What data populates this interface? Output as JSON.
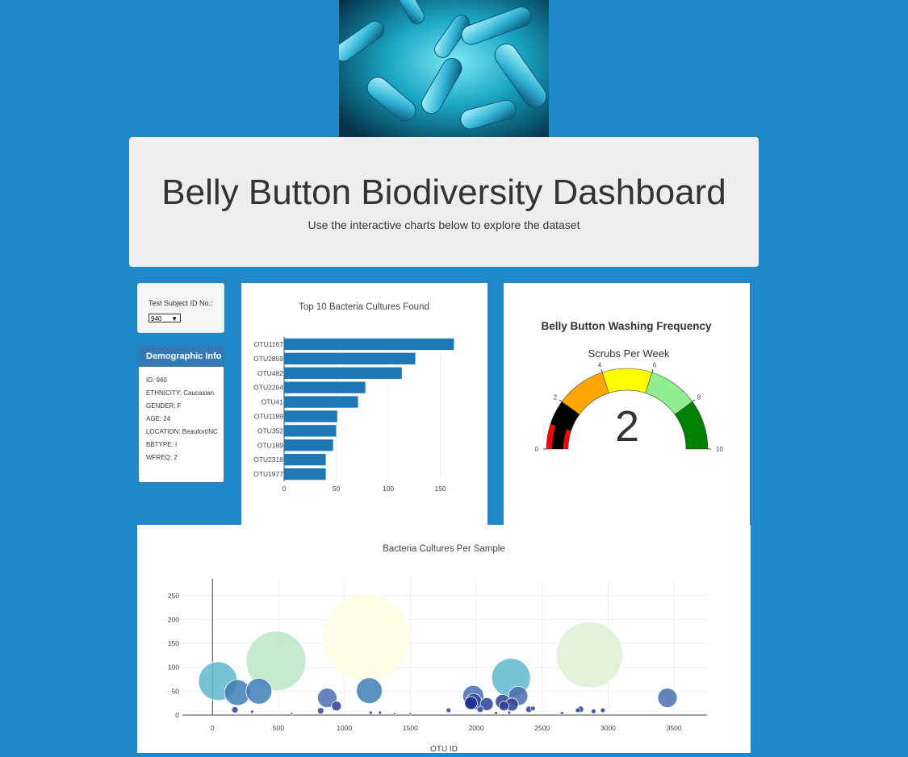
{
  "header": {
    "title": "Belly Button Biodiversity Dashboard",
    "subtitle": "Use the interactive charts below to explore the dataset"
  },
  "selector": {
    "label": "Test Subject ID No.:",
    "selected": "940"
  },
  "demographics": {
    "heading": "Demographic Info",
    "lines": [
      "ID: 940",
      "ETHNICITY: Caucasian",
      "GENDER: F",
      "AGE: 24",
      "LOCATION: Beaufort/NC",
      "BBTYPE: I",
      "WFREQ: 2"
    ]
  },
  "colors": {
    "page_bg": "#1e88c9",
    "bar_color": "#1f77b4",
    "panel_header": "#337ab7"
  },
  "chart_data": [
    {
      "type": "bar",
      "orientation": "horizontal",
      "title": "Top 10 Bacteria Cultures Found",
      "categories": [
        "OTU1167",
        "OTU2859",
        "OTU482",
        "OTU2264",
        "OTU41",
        "OTU1189",
        "OTU352",
        "OTU189",
        "OTU2318",
        "OTU1977"
      ],
      "values": [
        163,
        126,
        113,
        78,
        71,
        51,
        50,
        47,
        40,
        40
      ],
      "xticks": [
        0,
        50,
        100,
        150
      ],
      "xlim": [
        0,
        172
      ],
      "grid": true
    },
    {
      "type": "gauge",
      "title": "Belly Button Washing Frequency",
      "subtitle": "Scrubs Per Week",
      "value": 2,
      "value_label": "2",
      "range": [
        0,
        10
      ],
      "ticks": [
        0,
        2,
        4,
        6,
        8,
        10
      ],
      "steps": [
        {
          "range": [
            0,
            1
          ],
          "color": "#ff0000"
        },
        {
          "range": [
            1,
            2
          ],
          "color": "#000000"
        },
        {
          "range": [
            2,
            4
          ],
          "color": "#ffa500"
        },
        {
          "range": [
            4,
            6
          ],
          "color": "#ffff00"
        },
        {
          "range": [
            6,
            8
          ],
          "color": "#90ee90"
        },
        {
          "range": [
            8,
            10
          ],
          "color": "#008000"
        }
      ]
    },
    {
      "type": "scatter",
      "bubble": true,
      "title": "Bacteria Cultures Per Sample",
      "xlabel": "OTU ID",
      "ylabel": "",
      "xlim": [
        -375,
        3750
      ],
      "ylim": [
        0,
        285
      ],
      "xticks": [
        0,
        500,
        1000,
        1500,
        2000,
        2500,
        3000,
        3500
      ],
      "yticks": [
        0,
        50,
        100,
        150,
        200,
        250
      ],
      "grid": true,
      "points": [
        {
          "x": 41,
          "y": 71,
          "r": 24,
          "color": "#5eb9ce"
        },
        {
          "x": 189,
          "y": 47,
          "r": 16,
          "color": "#3f7fb7"
        },
        {
          "x": 352,
          "y": 50,
          "r": 16,
          "color": "#3f7fb7"
        },
        {
          "x": 482,
          "y": 113,
          "r": 37,
          "color": "#bde5c6"
        },
        {
          "x": 1167,
          "y": 163,
          "r": 54,
          "color": "#fefde0"
        },
        {
          "x": 1189,
          "y": 51,
          "r": 16,
          "color": "#3f7fb7"
        },
        {
          "x": 2264,
          "y": 78,
          "r": 24,
          "color": "#5eb9ce"
        },
        {
          "x": 2859,
          "y": 126,
          "r": 41,
          "color": "#ddf1d2"
        },
        {
          "x": 3450,
          "y": 36,
          "r": 12,
          "color": "#4a6fb0"
        },
        {
          "x": 870,
          "y": 36,
          "r": 12,
          "color": "#4a6fb0"
        },
        {
          "x": 1977,
          "y": 40,
          "r": 13,
          "color": "#4a6fb0"
        },
        {
          "x": 2318,
          "y": 40,
          "r": 12,
          "color": "#4a6fb0"
        },
        {
          "x": 1980,
          "y": 28,
          "r": 10,
          "color": "#2b3f98"
        },
        {
          "x": 2200,
          "y": 28,
          "r": 9,
          "color": "#2b3f98"
        },
        {
          "x": 2270,
          "y": 22,
          "r": 8,
          "color": "#2b3f98"
        },
        {
          "x": 2080,
          "y": 23,
          "r": 8,
          "color": "#2b3f98"
        },
        {
          "x": 1960,
          "y": 25,
          "r": 8,
          "color": "#1c2f8f"
        },
        {
          "x": 940,
          "y": 19,
          "r": 6,
          "color": "#2b3f98"
        },
        {
          "x": 2210,
          "y": 19,
          "r": 6,
          "color": "#2b3f98"
        },
        {
          "x": 2030,
          "y": 12,
          "r": 4,
          "color": "#2b3f98"
        },
        {
          "x": 2400,
          "y": 12,
          "r": 4,
          "color": "#2b3f98"
        },
        {
          "x": 2790,
          "y": 12,
          "r": 4,
          "color": "#2b3f98"
        },
        {
          "x": 2770,
          "y": 10,
          "r": 3,
          "color": "#2b3f98"
        },
        {
          "x": 2960,
          "y": 10,
          "r": 3,
          "color": "#2b3f98"
        },
        {
          "x": 2430,
          "y": 14,
          "r": 3,
          "color": "#2b3f98"
        },
        {
          "x": 170,
          "y": 11,
          "r": 4,
          "color": "#2b3f98"
        },
        {
          "x": 820,
          "y": 9,
          "r": 4,
          "color": "#2b3f98"
        },
        {
          "x": 1790,
          "y": 10,
          "r": 3,
          "color": "#2b3f98"
        },
        {
          "x": 2890,
          "y": 8,
          "r": 3,
          "color": "#2b3f98"
        },
        {
          "x": 300,
          "y": 7,
          "r": 2,
          "color": "#2b3f98"
        },
        {
          "x": 1200,
          "y": 5,
          "r": 2,
          "color": "#2b3f98"
        },
        {
          "x": 1270,
          "y": 5,
          "r": 2,
          "color": "#2b3f98"
        },
        {
          "x": 2250,
          "y": 5,
          "r": 2,
          "color": "#2b3f98"
        },
        {
          "x": 2650,
          "y": 4,
          "r": 2,
          "color": "#2b3f98"
        },
        {
          "x": 1500,
          "y": 3,
          "r": 1.5,
          "color": "#2b3f98"
        },
        {
          "x": 1380,
          "y": 3,
          "r": 1.5,
          "color": "#2b3f98"
        },
        {
          "x": 600,
          "y": 3,
          "r": 1.5,
          "color": "#2b3f98"
        },
        {
          "x": 2150,
          "y": 4,
          "r": 2,
          "color": "#2b3f98"
        }
      ]
    }
  ]
}
